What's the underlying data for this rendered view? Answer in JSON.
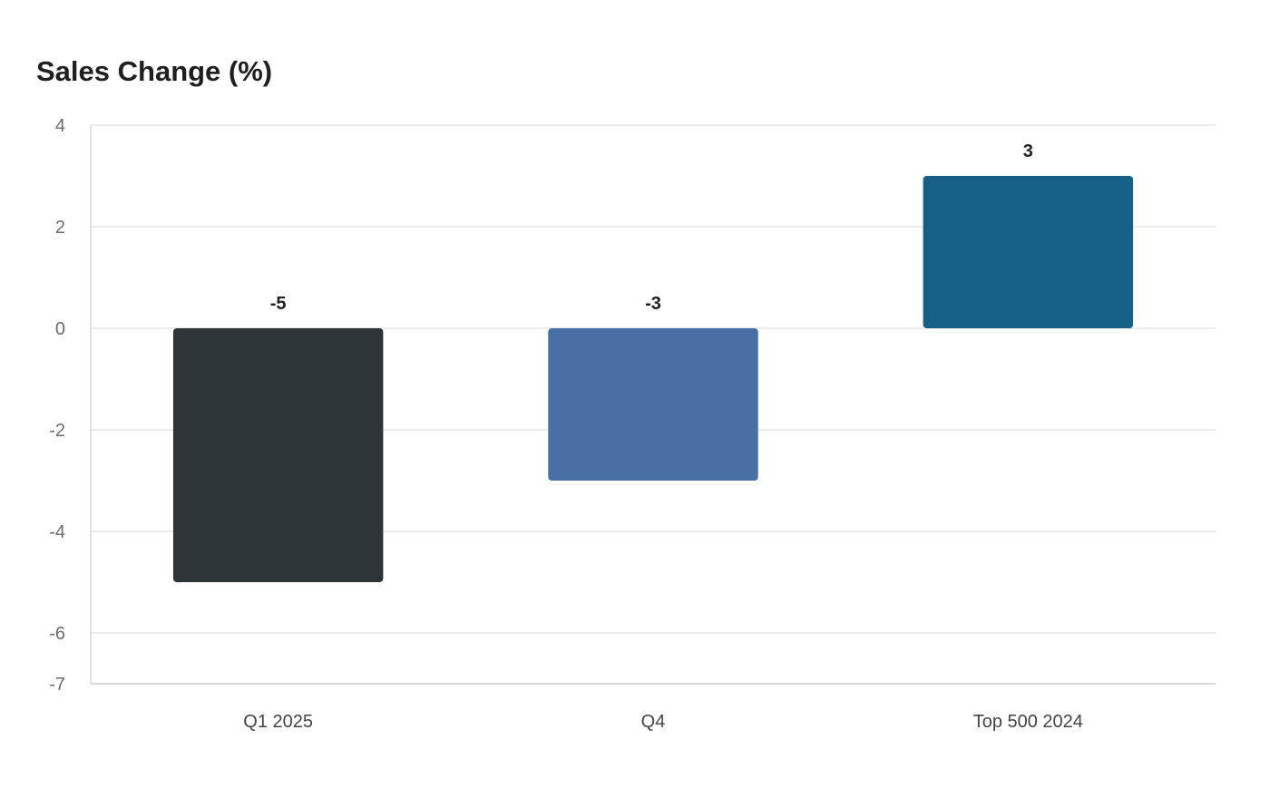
{
  "chart_data": {
    "type": "bar",
    "title": "Sales Change (%)",
    "xlabel": "",
    "ylabel": "",
    "categories": [
      "Q1 2025",
      "Q4",
      "Top 500 2024"
    ],
    "values": [
      -5,
      -3,
      3
    ],
    "value_labels": [
      "-5",
      "-3",
      "3"
    ],
    "colors": [
      "#2e3538",
      "#4a6fa5",
      "#166088"
    ],
    "ylim": [
      -7,
      4
    ],
    "yticks": [
      4,
      2,
      0,
      -2,
      -4,
      -6,
      -7
    ],
    "grid": true,
    "legend": "none"
  }
}
